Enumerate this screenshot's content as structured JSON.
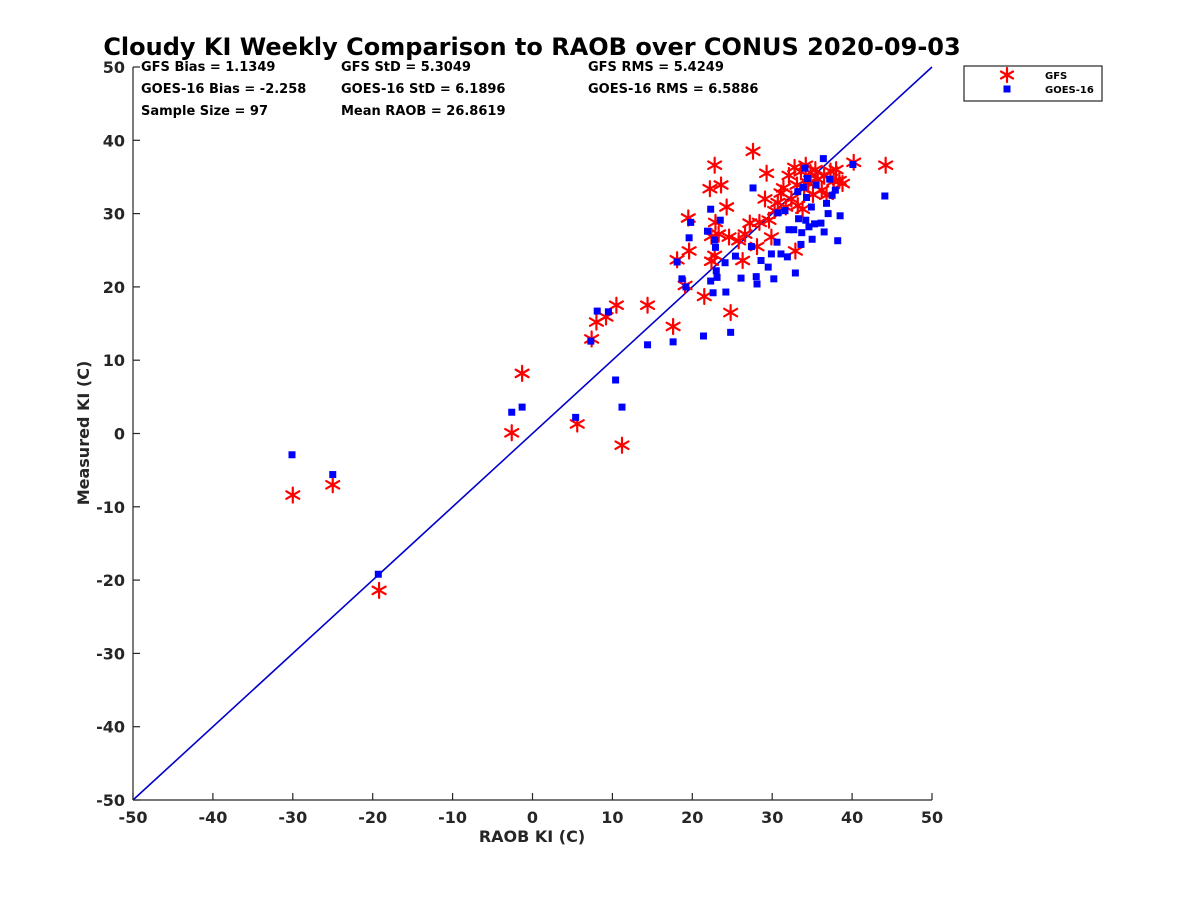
{
  "chart_data": {
    "type": "scatter",
    "title": "Cloudy KI Weekly Comparison to RAOB over CONUS 2020-09-03",
    "xlabel": "RAOB KI (C)",
    "ylabel": "Measured KI (C)",
    "xlim": [
      -50,
      50
    ],
    "ylim": [
      -50,
      50
    ],
    "xticks": [
      -50,
      -40,
      -30,
      -20,
      -10,
      0,
      10,
      20,
      30,
      40,
      50
    ],
    "yticks": [
      -50,
      -40,
      -30,
      -20,
      -10,
      0,
      10,
      20,
      30,
      40,
      50
    ],
    "grid": false,
    "legend_position": "outside-top-right",
    "reference_line": {
      "type": "one-to-one",
      "color": "#0000cc"
    },
    "stats": {
      "row1": [
        "GFS Bias = 1.1349",
        "GFS StD = 5.3049",
        "GFS RMS = 5.4249"
      ],
      "row2": [
        "GOES-16 Bias = -2.258",
        "GOES-16 StD = 6.1896",
        "GOES-16 RMS = 6.5886"
      ],
      "row3": [
        "Sample Size = 97",
        "Mean RAOB = 26.8619"
      ]
    },
    "series": [
      {
        "name": "GFS",
        "marker": "asterisk",
        "color": "#ff0000",
        "points": [
          [
            -30,
            -8.4
          ],
          [
            -25,
            -7
          ],
          [
            -19.2,
            -21.4
          ],
          [
            -2.6,
            0.1
          ],
          [
            -1.3,
            8.2
          ],
          [
            5.6,
            1.3
          ],
          [
            7.4,
            12.9
          ],
          [
            8,
            15.2
          ],
          [
            9.2,
            15.9
          ],
          [
            10.5,
            17.5
          ],
          [
            11.2,
            -1.6
          ],
          [
            14.4,
            17.5
          ],
          [
            17.6,
            14.6
          ],
          [
            18.1,
            23.7
          ],
          [
            19.1,
            20.2
          ],
          [
            19.5,
            29.4
          ],
          [
            19.6,
            24.9
          ],
          [
            21.5,
            18.7
          ],
          [
            22.2,
            33.4
          ],
          [
            22.4,
            26.9
          ],
          [
            22.4,
            23.5
          ],
          [
            22.8,
            36.6
          ],
          [
            22.8,
            24.3
          ],
          [
            22.9,
            28.8
          ],
          [
            23.3,
            27.2
          ],
          [
            23.6,
            33.9
          ],
          [
            24.3,
            30.9
          ],
          [
            24.6,
            26.8
          ],
          [
            24.8,
            16.5
          ],
          [
            25.8,
            26.3
          ],
          [
            26.3,
            23.6
          ],
          [
            26.6,
            27.2
          ],
          [
            27.2,
            28.7
          ],
          [
            27.6,
            38.5
          ],
          [
            28.1,
            25.5
          ],
          [
            28.4,
            28.8
          ],
          [
            29.1,
            32
          ],
          [
            29.3,
            35.5
          ],
          [
            29.6,
            29.1
          ],
          [
            29.9,
            26.8
          ],
          [
            30.3,
            30.4
          ],
          [
            30.7,
            31.5
          ],
          [
            31.1,
            32.8
          ],
          [
            31.4,
            33.5
          ],
          [
            31.7,
            30.9
          ],
          [
            32.1,
            35.2
          ],
          [
            32.4,
            32
          ],
          [
            32.8,
            36.3
          ],
          [
            32.9,
            24.9
          ],
          [
            33.1,
            33.9
          ],
          [
            33.2,
            31.1
          ],
          [
            33.6,
            35.7
          ],
          [
            33.8,
            30.6
          ],
          [
            34,
            33.4
          ],
          [
            34.2,
            36.6
          ],
          [
            34.5,
            34.2
          ],
          [
            34.8,
            35.6
          ],
          [
            35.1,
            32.6
          ],
          [
            35.4,
            36
          ],
          [
            35.7,
            34.7
          ],
          [
            36.2,
            33.2
          ],
          [
            36.5,
            35.1
          ],
          [
            36.8,
            32.5
          ],
          [
            37.3,
            35.8
          ],
          [
            37.7,
            34.4
          ],
          [
            38,
            36
          ],
          [
            38.4,
            34.5
          ],
          [
            38.8,
            34.1
          ],
          [
            40.2,
            37
          ],
          [
            44.2,
            36.6
          ]
        ]
      },
      {
        "name": "GOES-16",
        "marker": "square",
        "color": "#0000ff",
        "points": [
          [
            -30.1,
            -2.9
          ],
          [
            -25,
            -5.6
          ],
          [
            -19.3,
            -19.2
          ],
          [
            -2.6,
            2.9
          ],
          [
            -1.3,
            3.6
          ],
          [
            5.4,
            2.2
          ],
          [
            7.3,
            12.6
          ],
          [
            8.1,
            16.7
          ],
          [
            9.5,
            16.6
          ],
          [
            10.4,
            7.3
          ],
          [
            11.2,
            3.6
          ],
          [
            14.4,
            12.1
          ],
          [
            17.6,
            12.5
          ],
          [
            18.1,
            23.4
          ],
          [
            18.7,
            21.1
          ],
          [
            19.2,
            20
          ],
          [
            19.6,
            26.7
          ],
          [
            19.8,
            28.8
          ],
          [
            21.4,
            13.3
          ],
          [
            21.9,
            27.6
          ],
          [
            22.3,
            30.6
          ],
          [
            22.3,
            20.8
          ],
          [
            22.6,
            19.2
          ],
          [
            22.8,
            26.4
          ],
          [
            22.9,
            25.4
          ],
          [
            23,
            22.2
          ],
          [
            23.1,
            21.3
          ],
          [
            23.5,
            29.1
          ],
          [
            24.1,
            23.3
          ],
          [
            24.2,
            19.3
          ],
          [
            24.8,
            13.8
          ],
          [
            25.4,
            24.2
          ],
          [
            26.1,
            21.2
          ],
          [
            27.4,
            25.5
          ],
          [
            27.6,
            33.5
          ],
          [
            28,
            21.4
          ],
          [
            28.1,
            20.4
          ],
          [
            28.6,
            23.6
          ],
          [
            29.5,
            22.7
          ],
          [
            29.9,
            24.5
          ],
          [
            30.2,
            21.1
          ],
          [
            30.6,
            26.1
          ],
          [
            30.7,
            30.1
          ],
          [
            31.1,
            24.5
          ],
          [
            31.6,
            30.4
          ],
          [
            31.9,
            24.1
          ],
          [
            32.1,
            27.8
          ],
          [
            32.7,
            27.8
          ],
          [
            32.9,
            21.9
          ],
          [
            33.2,
            33
          ],
          [
            33.3,
            29.3
          ],
          [
            33.6,
            25.8
          ],
          [
            33.7,
            27.4
          ],
          [
            33.9,
            33.6
          ],
          [
            34.1,
            36.2
          ],
          [
            34.2,
            29.1
          ],
          [
            34.3,
            32.2
          ],
          [
            34.4,
            34.8
          ],
          [
            34.6,
            28.2
          ],
          [
            34.9,
            30.9
          ],
          [
            35,
            26.5
          ],
          [
            35.3,
            28.6
          ],
          [
            35.5,
            33.9
          ],
          [
            36.1,
            28.7
          ],
          [
            36.4,
            37.5
          ],
          [
            36.5,
            27.5
          ],
          [
            36.8,
            31.4
          ],
          [
            37,
            30
          ],
          [
            37.2,
            34.7
          ],
          [
            37.5,
            32.5
          ],
          [
            37.9,
            33.2
          ],
          [
            38.2,
            26.3
          ],
          [
            38.5,
            29.7
          ],
          [
            40.1,
            36.7
          ],
          [
            44.1,
            32.4
          ]
        ]
      }
    ]
  }
}
